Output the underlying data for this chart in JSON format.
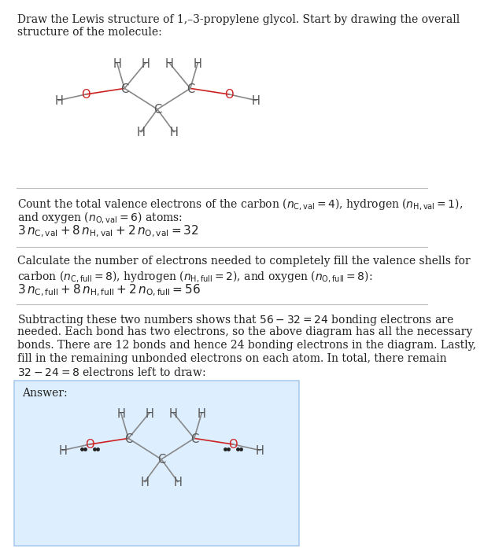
{
  "title_text": "Draw the Lewis structure of 1,–3-propylene glycol. Start by drawing the overall\nstructure of the molecule:",
  "section1_text": "Count the total valence electrons of the carbon ($n_{\\mathrm{C,val}} = 4$), hydrogen ($n_{\\mathrm{H,val}} = 1$),\nand oxygen ($n_{\\mathrm{O,val}} = 6$) atoms:\n$3\\, n_{\\mathrm{C,val}} + 8\\, n_{\\mathrm{H,val}} + 2\\, n_{\\mathrm{O,val}} = 32$",
  "section2_text": "Calculate the number of electrons needed to completely fill the valence shells for\ncarbon ($n_{\\mathrm{C,full}} = 8$), hydrogen ($n_{\\mathrm{H,full}} = 2$), and oxygen ($n_{\\mathrm{O,full}} = 8$):\n$3\\, n_{\\mathrm{C,full}} + 8\\, n_{\\mathrm{H,full}} + 2\\, n_{\\mathrm{O,full}} = 56$",
  "section3_text": "Subtracting these two numbers shows that $56 - 32 = 24$ bonding electrons are\nneeded. Each bond has two electrons, so the above diagram has all the necessary\nbonds. There are 12 bonds and hence 24 bonding electrons in the diagram. Lastly,\nfill in the remaining unbonded electrons on each atom. In total, there remain\n$32 - 24 = 8$ electrons left to draw:",
  "answer_label": "Answer:",
  "bg_color": "#ffffff",
  "answer_box_color": "#ddeeff",
  "answer_box_border": "#aaccee",
  "C_color": "#555555",
  "H_color": "#555555",
  "O_color": "#cc2222",
  "bond_color_CO": "#cc2222",
  "bond_color_CC": "#888888",
  "bond_color_CH": "#888888",
  "text_color": "#222222",
  "font_size_main": 10,
  "font_size_atom": 10
}
